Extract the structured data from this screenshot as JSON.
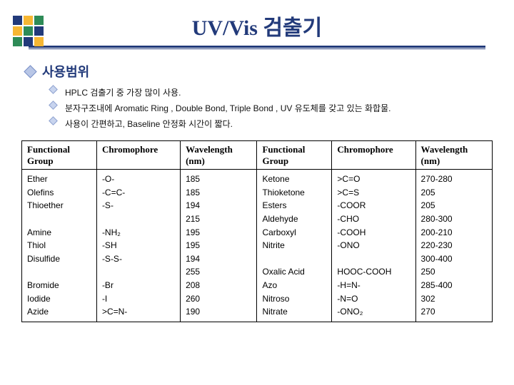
{
  "logo_colors": [
    "#223a7a",
    "#f7b733",
    "#2e8b57",
    "#f7b733",
    "#2e8b57",
    "#223a7a",
    "#2e8b57",
    "#223a7a",
    "#f7b733"
  ],
  "title": {
    "text": "UV/Vis 검출기",
    "color": "#223a7a"
  },
  "section": {
    "heading": "사용범위",
    "bullets": [
      "HPLC 검출기 중 가장 많이 사용.",
      "분자구조내에 Aromatic Ring , Double Bond, Triple Bond , UV 유도체를 갖고 있는 화합물.",
      "사용이 간편하고, Baseline 안정화 시간이 짧다."
    ]
  },
  "table": {
    "headers": [
      "Functional Group",
      "Chromophore",
      "Wavelength (nm)",
      "Functional Group",
      "Chromophore",
      "Wavelength (nm)"
    ],
    "row": {
      "c1": "Ether\nOlefins\nThioether\n\nAmine\nThiol\nDisulfide\n\nBromide\nIodide\nAzide",
      "c2": "-O-\n-C=C-\n-S-\n\n-NH₂\n-SH\n-S-S-\n\n-Br\n-I\n>C=N-",
      "c3": "185\n185\n194\n215\n195\n195\n194\n255\n208\n260\n190",
      "c4": "Ketone\nThioketone\nEsters\nAldehyde\nCarboxyl\nNitrite\n\nOxalic Acid\nAzo\nNitroso\nNitrate",
      "c5": ">C=O\n>C=S\n-COOR\n-CHO\n-COOH\n-ONO\n\nHOOC-COOH\n-H=N-\n-N=O\n-ONO₂",
      "c6": "270-280\n205\n205\n280-300\n200-210\n220-230\n300-400\n250\n285-400\n302\n270"
    }
  }
}
